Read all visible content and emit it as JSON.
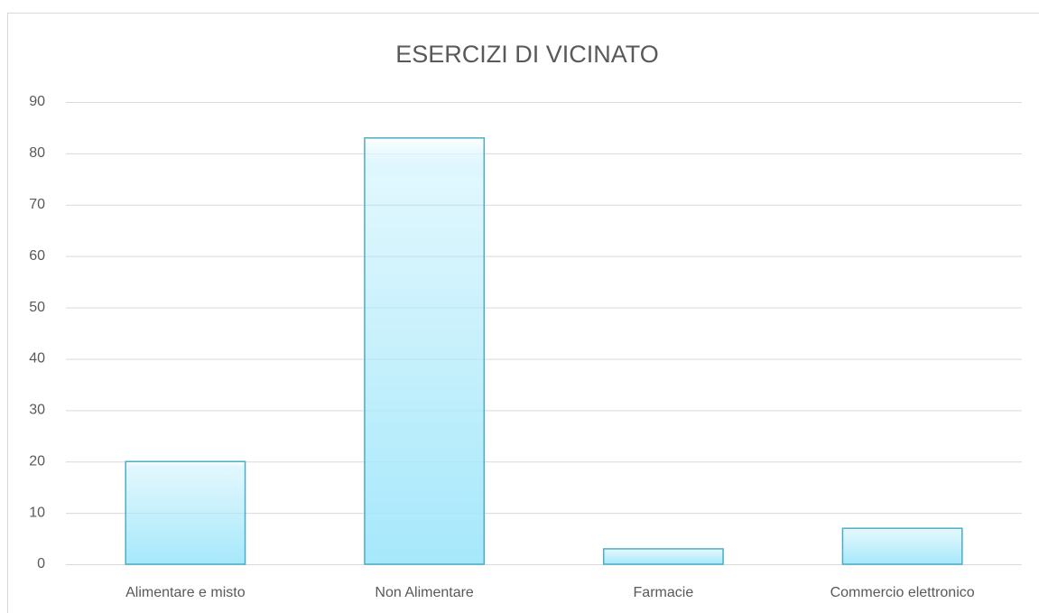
{
  "chart_data": {
    "type": "bar",
    "title": "ESERCIZI DI VICINATO",
    "categories": [
      "Alimentare e misto",
      "Non Alimentare",
      "Farmacie",
      "Commercio elettronico"
    ],
    "values": [
      20,
      83,
      3,
      7
    ],
    "color": "#a6e8fb",
    "edge_color": "#4bacc6",
    "ylim": [
      0,
      90
    ],
    "yticks": [
      0,
      10,
      20,
      30,
      40,
      50,
      60,
      70,
      80,
      90
    ],
    "grid": true
  }
}
